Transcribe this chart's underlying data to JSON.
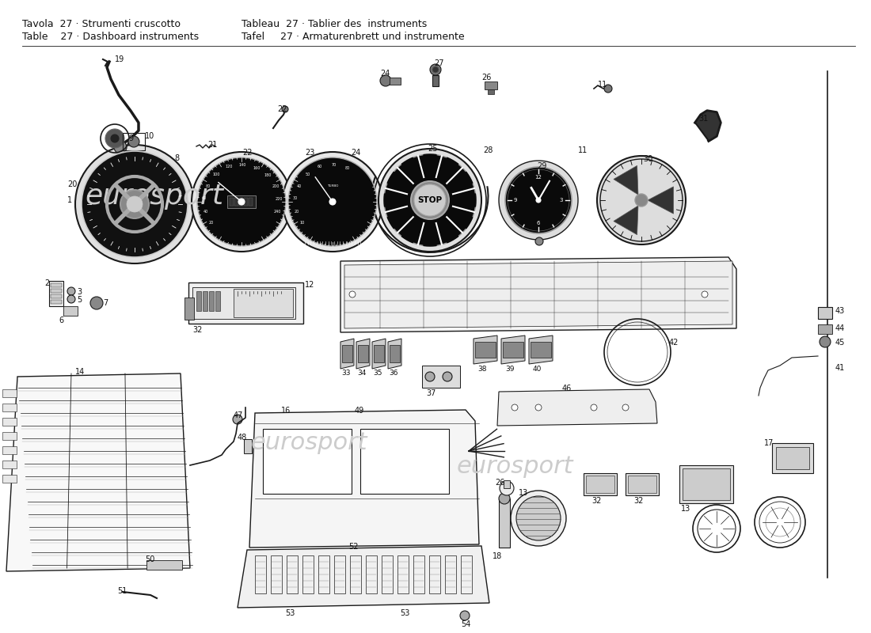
{
  "bg_color": "#ffffff",
  "line_color": "#1a1a1a",
  "text_color": "#111111",
  "watermark_color": "#cccccc",
  "header": {
    "line1_left": "Tavola  27 · Strumenti cruscotto",
    "line2_left": "Table    27 · Dashboard instruments",
    "line1_right": "Tableau  27 · Tablier des  instruments",
    "line2_right": "Tafel     27 · Armaturenbrett und instrumente"
  },
  "fig_width": 11.0,
  "fig_height": 8.0,
  "dpi": 100
}
